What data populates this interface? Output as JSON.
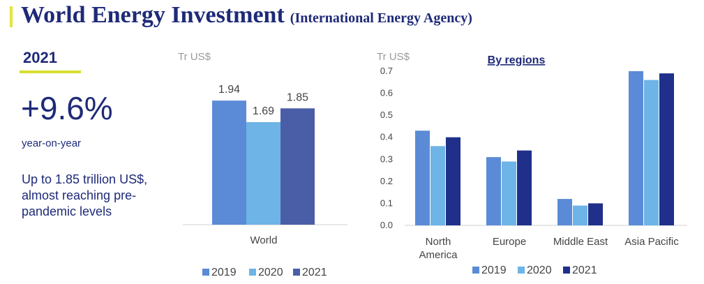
{
  "header": {
    "title": "World Energy Investment",
    "subtitle": "(International Energy Agency)"
  },
  "summary": {
    "year": "2021",
    "change": "+9.6%",
    "change_label": "year-on-year",
    "note": "Up to 1.85 trillion US$, almost reaching pre-pandemic levels"
  },
  "colors": {
    "2019": "#5b8bd6",
    "2020": "#6eb4e6",
    "2021_world": "#4a5ea8",
    "2021_regions": "#1f2f8a",
    "accent": "#d8de2e",
    "title": "#1e2a78"
  },
  "chart_data": [
    {
      "type": "bar",
      "ylabel": "Tr US$",
      "categories": [
        "World"
      ],
      "series": [
        {
          "name": "2019",
          "values": [
            1.94
          ]
        },
        {
          "name": "2020",
          "values": [
            1.69
          ]
        },
        {
          "name": "2021",
          "values": [
            1.85
          ]
        }
      ],
      "data_labels": [
        "1.94",
        "1.69",
        "1.85"
      ],
      "legend": [
        "2019",
        "2020",
        "2021"
      ],
      "legend_position": "bottom"
    },
    {
      "type": "bar",
      "title": "By regions",
      "ylabel": "Tr US$",
      "categories": [
        "North America",
        "Europe",
        "Middle East",
        "Asia Pacific"
      ],
      "category_lines": [
        [
          "North",
          "America"
        ],
        [
          "Europe"
        ],
        [
          "Middle East"
        ],
        [
          "Asia Pacific"
        ]
      ],
      "series": [
        {
          "name": "2019",
          "values": [
            0.43,
            0.31,
            0.12,
            0.7
          ]
        },
        {
          "name": "2020",
          "values": [
            0.36,
            0.29,
            0.09,
            0.66
          ]
        },
        {
          "name": "2021",
          "values": [
            0.4,
            0.34,
            0.1,
            0.69
          ]
        }
      ],
      "ylim": [
        0,
        0.7
      ],
      "yticks": [
        "0.0",
        "0.1",
        "0.2",
        "0.3",
        "0.4",
        "0.5",
        "0.6",
        "0.7"
      ],
      "legend": [
        "2019",
        "2020",
        "2021"
      ],
      "legend_position": "bottom"
    }
  ]
}
